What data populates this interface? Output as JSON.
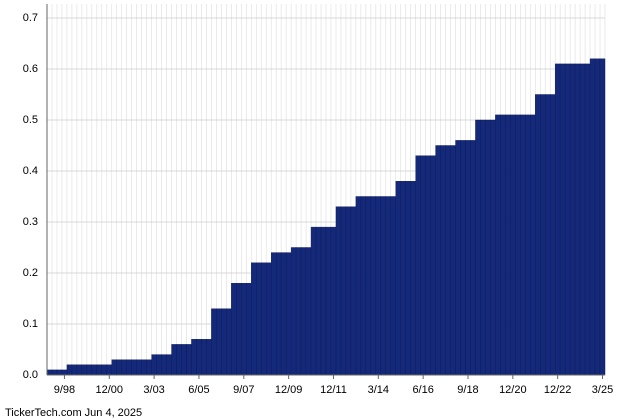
{
  "chart_data": {
    "type": "bar",
    "footer": "TickerTech.com  Jun 4, 2025",
    "categories": [
      null,
      null,
      null,
      "9/98",
      null,
      null,
      null,
      null,
      null,
      null,
      null,
      null,
      "12/00",
      null,
      null,
      null,
      null,
      null,
      null,
      null,
      null,
      "3/03",
      null,
      null,
      null,
      null,
      null,
      null,
      null,
      null,
      "6/05",
      null,
      null,
      null,
      null,
      null,
      null,
      null,
      null,
      "9/07",
      null,
      null,
      null,
      null,
      null,
      null,
      null,
      null,
      "12/09",
      null,
      null,
      null,
      null,
      null,
      null,
      null,
      null,
      "12/11",
      null,
      null,
      null,
      null,
      null,
      null,
      null,
      null,
      "3/14",
      null,
      null,
      null,
      null,
      null,
      null,
      null,
      null,
      "6/16",
      null,
      null,
      null,
      null,
      null,
      null,
      null,
      null,
      "9/18",
      null,
      null,
      null,
      null,
      null,
      null,
      null,
      null,
      "12/20",
      null,
      null,
      null,
      null,
      null,
      null,
      null,
      null,
      "12/22",
      null,
      null,
      null,
      null,
      null,
      null,
      null,
      null,
      "3/25"
    ],
    "values": [
      0.01,
      0.01,
      0.01,
      0.01,
      0.02,
      0.02,
      0.02,
      0.02,
      0.02,
      0.02,
      0.02,
      0.02,
      0.02,
      0.03,
      0.03,
      0.03,
      0.03,
      0.03,
      0.03,
      0.03,
      0.03,
      0.04,
      0.04,
      0.04,
      0.04,
      0.06,
      0.06,
      0.06,
      0.06,
      0.07,
      0.07,
      0.07,
      0.07,
      0.13,
      0.13,
      0.13,
      0.13,
      0.18,
      0.18,
      0.18,
      0.18,
      0.22,
      0.22,
      0.22,
      0.22,
      0.24,
      0.24,
      0.24,
      0.24,
      0.25,
      0.25,
      0.25,
      0.25,
      0.29,
      0.29,
      0.29,
      0.29,
      0.29,
      0.33,
      0.33,
      0.33,
      0.33,
      0.35,
      0.35,
      0.35,
      0.35,
      0.35,
      0.35,
      0.35,
      0.35,
      0.38,
      0.38,
      0.38,
      0.38,
      0.43,
      0.43,
      0.43,
      0.43,
      0.45,
      0.45,
      0.45,
      0.45,
      0.46,
      0.46,
      0.46,
      0.46,
      0.5,
      0.5,
      0.5,
      0.5,
      0.51,
      0.51,
      0.51,
      0.51,
      0.51,
      0.51,
      0.51,
      0.51,
      0.55,
      0.55,
      0.55,
      0.55,
      0.61,
      0.61,
      0.61,
      0.61,
      0.61,
      0.61,
      0.61,
      0.62,
      0.62,
      0.62
    ],
    "color": "#15297a",
    "ylim": [
      0,
      0.7
    ],
    "yticks": [
      {
        "value": 0,
        "label": "0.0"
      },
      0.1,
      0.2,
      0.3,
      0.4,
      0.5,
      0.6,
      0.7
    ],
    "grid": true
  }
}
